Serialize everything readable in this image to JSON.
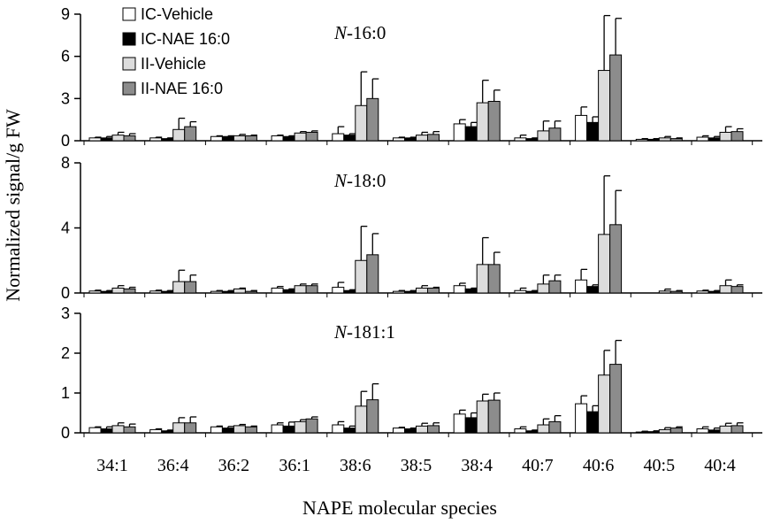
{
  "chart_data": {
    "type": "bar",
    "ylabel": "Normalized signal/g FW",
    "xlabel": "NAPE molecular species",
    "categories": [
      "34:1",
      "36:4",
      "36:2",
      "36:1",
      "38:6",
      "38:5",
      "38:4",
      "40:7",
      "40:6",
      "40:5",
      "40:4"
    ],
    "legend": {
      "placement": "top-left",
      "entries": [
        "IC-Vehicle",
        "IC-NAE 16:0",
        "II-Vehicle",
        "II-NAE 16:0"
      ]
    },
    "series_colors": [
      "#ffffff",
      "#000000",
      "#dcdcdc",
      "#8c8c8c"
    ],
    "panels": [
      {
        "title_prefix": "N",
        "title_suffix": "-16:0",
        "ylim": [
          0,
          9
        ],
        "yticks": [
          0,
          3,
          6,
          9
        ],
        "series": [
          {
            "name": "IC-Vehicle",
            "values": [
              0.2,
              0.2,
              0.3,
              0.35,
              0.5,
              0.2,
              1.2,
              0.2,
              1.8,
              0.1,
              0.25
            ],
            "errors": [
              0.05,
              0.05,
              0.05,
              0.05,
              0.5,
              0.05,
              0.3,
              0.2,
              0.6,
              0.05,
              0.1
            ]
          },
          {
            "name": "IC-NAE 16:0",
            "values": [
              0.2,
              0.15,
              0.3,
              0.3,
              0.4,
              0.2,
              1.0,
              0.15,
              1.3,
              0.1,
              0.2
            ],
            "errors": [
              0.1,
              0.05,
              0.05,
              0.05,
              0.1,
              0.05,
              0.3,
              0.05,
              0.4,
              0.05,
              0.1
            ]
          },
          {
            "name": "II-Vehicle",
            "values": [
              0.4,
              0.8,
              0.35,
              0.55,
              2.5,
              0.4,
              2.7,
              0.7,
              5.0,
              0.2,
              0.6
            ],
            "errors": [
              0.2,
              0.8,
              0.1,
              0.1,
              2.4,
              0.2,
              1.6,
              0.7,
              3.9,
              0.1,
              0.4
            ]
          },
          {
            "name": "II-NAE 16:0",
            "values": [
              0.35,
              1.0,
              0.35,
              0.6,
              3.0,
              0.45,
              2.8,
              0.9,
              6.1,
              0.15,
              0.65
            ],
            "errors": [
              0.15,
              0.35,
              0.05,
              0.1,
              1.4,
              0.2,
              0.8,
              0.5,
              2.6,
              0.05,
              0.2
            ]
          }
        ]
      },
      {
        "title_prefix": "N",
        "title_suffix": "-18:0",
        "ylim": [
          0,
          8
        ],
        "yticks": [
          0,
          4,
          8
        ],
        "series": [
          {
            "name": "IC-Vehicle",
            "values": [
              0.12,
              0.12,
              0.1,
              0.3,
              0.35,
              0.1,
              0.45,
              0.15,
              0.8,
              0.0,
              0.12
            ],
            "errors": [
              0.05,
              0.05,
              0.05,
              0.1,
              0.3,
              0.05,
              0.15,
              0.15,
              0.65,
              0.0,
              0.05
            ]
          },
          {
            "name": "IC-NAE 16:0",
            "values": [
              0.1,
              0.1,
              0.1,
              0.2,
              0.15,
              0.1,
              0.25,
              0.1,
              0.4,
              0.0,
              0.1
            ],
            "errors": [
              0.05,
              0.05,
              0.05,
              0.05,
              0.05,
              0.05,
              0.05,
              0.05,
              0.1,
              0.0,
              0.05
            ]
          },
          {
            "name": "II-Vehicle",
            "values": [
              0.3,
              0.7,
              0.25,
              0.45,
              2.0,
              0.3,
              1.75,
              0.55,
              3.6,
              0.12,
              0.45
            ],
            "errors": [
              0.15,
              0.7,
              0.05,
              0.1,
              2.1,
              0.15,
              1.65,
              0.55,
              3.6,
              0.12,
              0.35
            ]
          },
          {
            "name": "II-NAE 16:0",
            "values": [
              0.25,
              0.7,
              0.1,
              0.45,
              2.35,
              0.3,
              1.75,
              0.75,
              4.2,
              0.1,
              0.4
            ],
            "errors": [
              0.1,
              0.4,
              0.05,
              0.1,
              1.3,
              0.05,
              0.75,
              0.35,
              2.1,
              0.05,
              0.1
            ]
          }
        ]
      },
      {
        "title_prefix": "N",
        "title_suffix": "-181:1",
        "ylim": [
          0,
          3
        ],
        "yticks": [
          0,
          1,
          2,
          3
        ],
        "series": [
          {
            "name": "IC-Vehicle",
            "values": [
              0.13,
              0.08,
              0.15,
              0.2,
              0.2,
              0.12,
              0.47,
              0.1,
              0.73,
              0.02,
              0.1
            ],
            "errors": [
              0.02,
              0.02,
              0.02,
              0.05,
              0.08,
              0.02,
              0.1,
              0.05,
              0.2,
              0.02,
              0.05
            ]
          },
          {
            "name": "IC-NAE 16:0",
            "values": [
              0.1,
              0.05,
              0.12,
              0.17,
              0.12,
              0.1,
              0.38,
              0.05,
              0.53,
              0.03,
              0.07
            ],
            "errors": [
              0.05,
              0.02,
              0.04,
              0.1,
              0.05,
              0.02,
              0.12,
              0.02,
              0.15,
              0.02,
              0.05
            ]
          },
          {
            "name": "II-Vehicle",
            "values": [
              0.18,
              0.25,
              0.18,
              0.28,
              0.67,
              0.17,
              0.8,
              0.2,
              1.45,
              0.08,
              0.17
            ],
            "errors": [
              0.07,
              0.13,
              0.03,
              0.05,
              0.37,
              0.07,
              0.17,
              0.15,
              0.62,
              0.05,
              0.07
            ]
          },
          {
            "name": "II-NAE 16:0",
            "values": [
              0.15,
              0.25,
              0.15,
              0.35,
              0.83,
              0.18,
              0.82,
              0.28,
              1.72,
              0.12,
              0.18
            ],
            "errors": [
              0.07,
              0.15,
              0.02,
              0.05,
              0.4,
              0.07,
              0.18,
              0.15,
              0.6,
              0.03,
              0.07
            ]
          }
        ]
      }
    ]
  }
}
